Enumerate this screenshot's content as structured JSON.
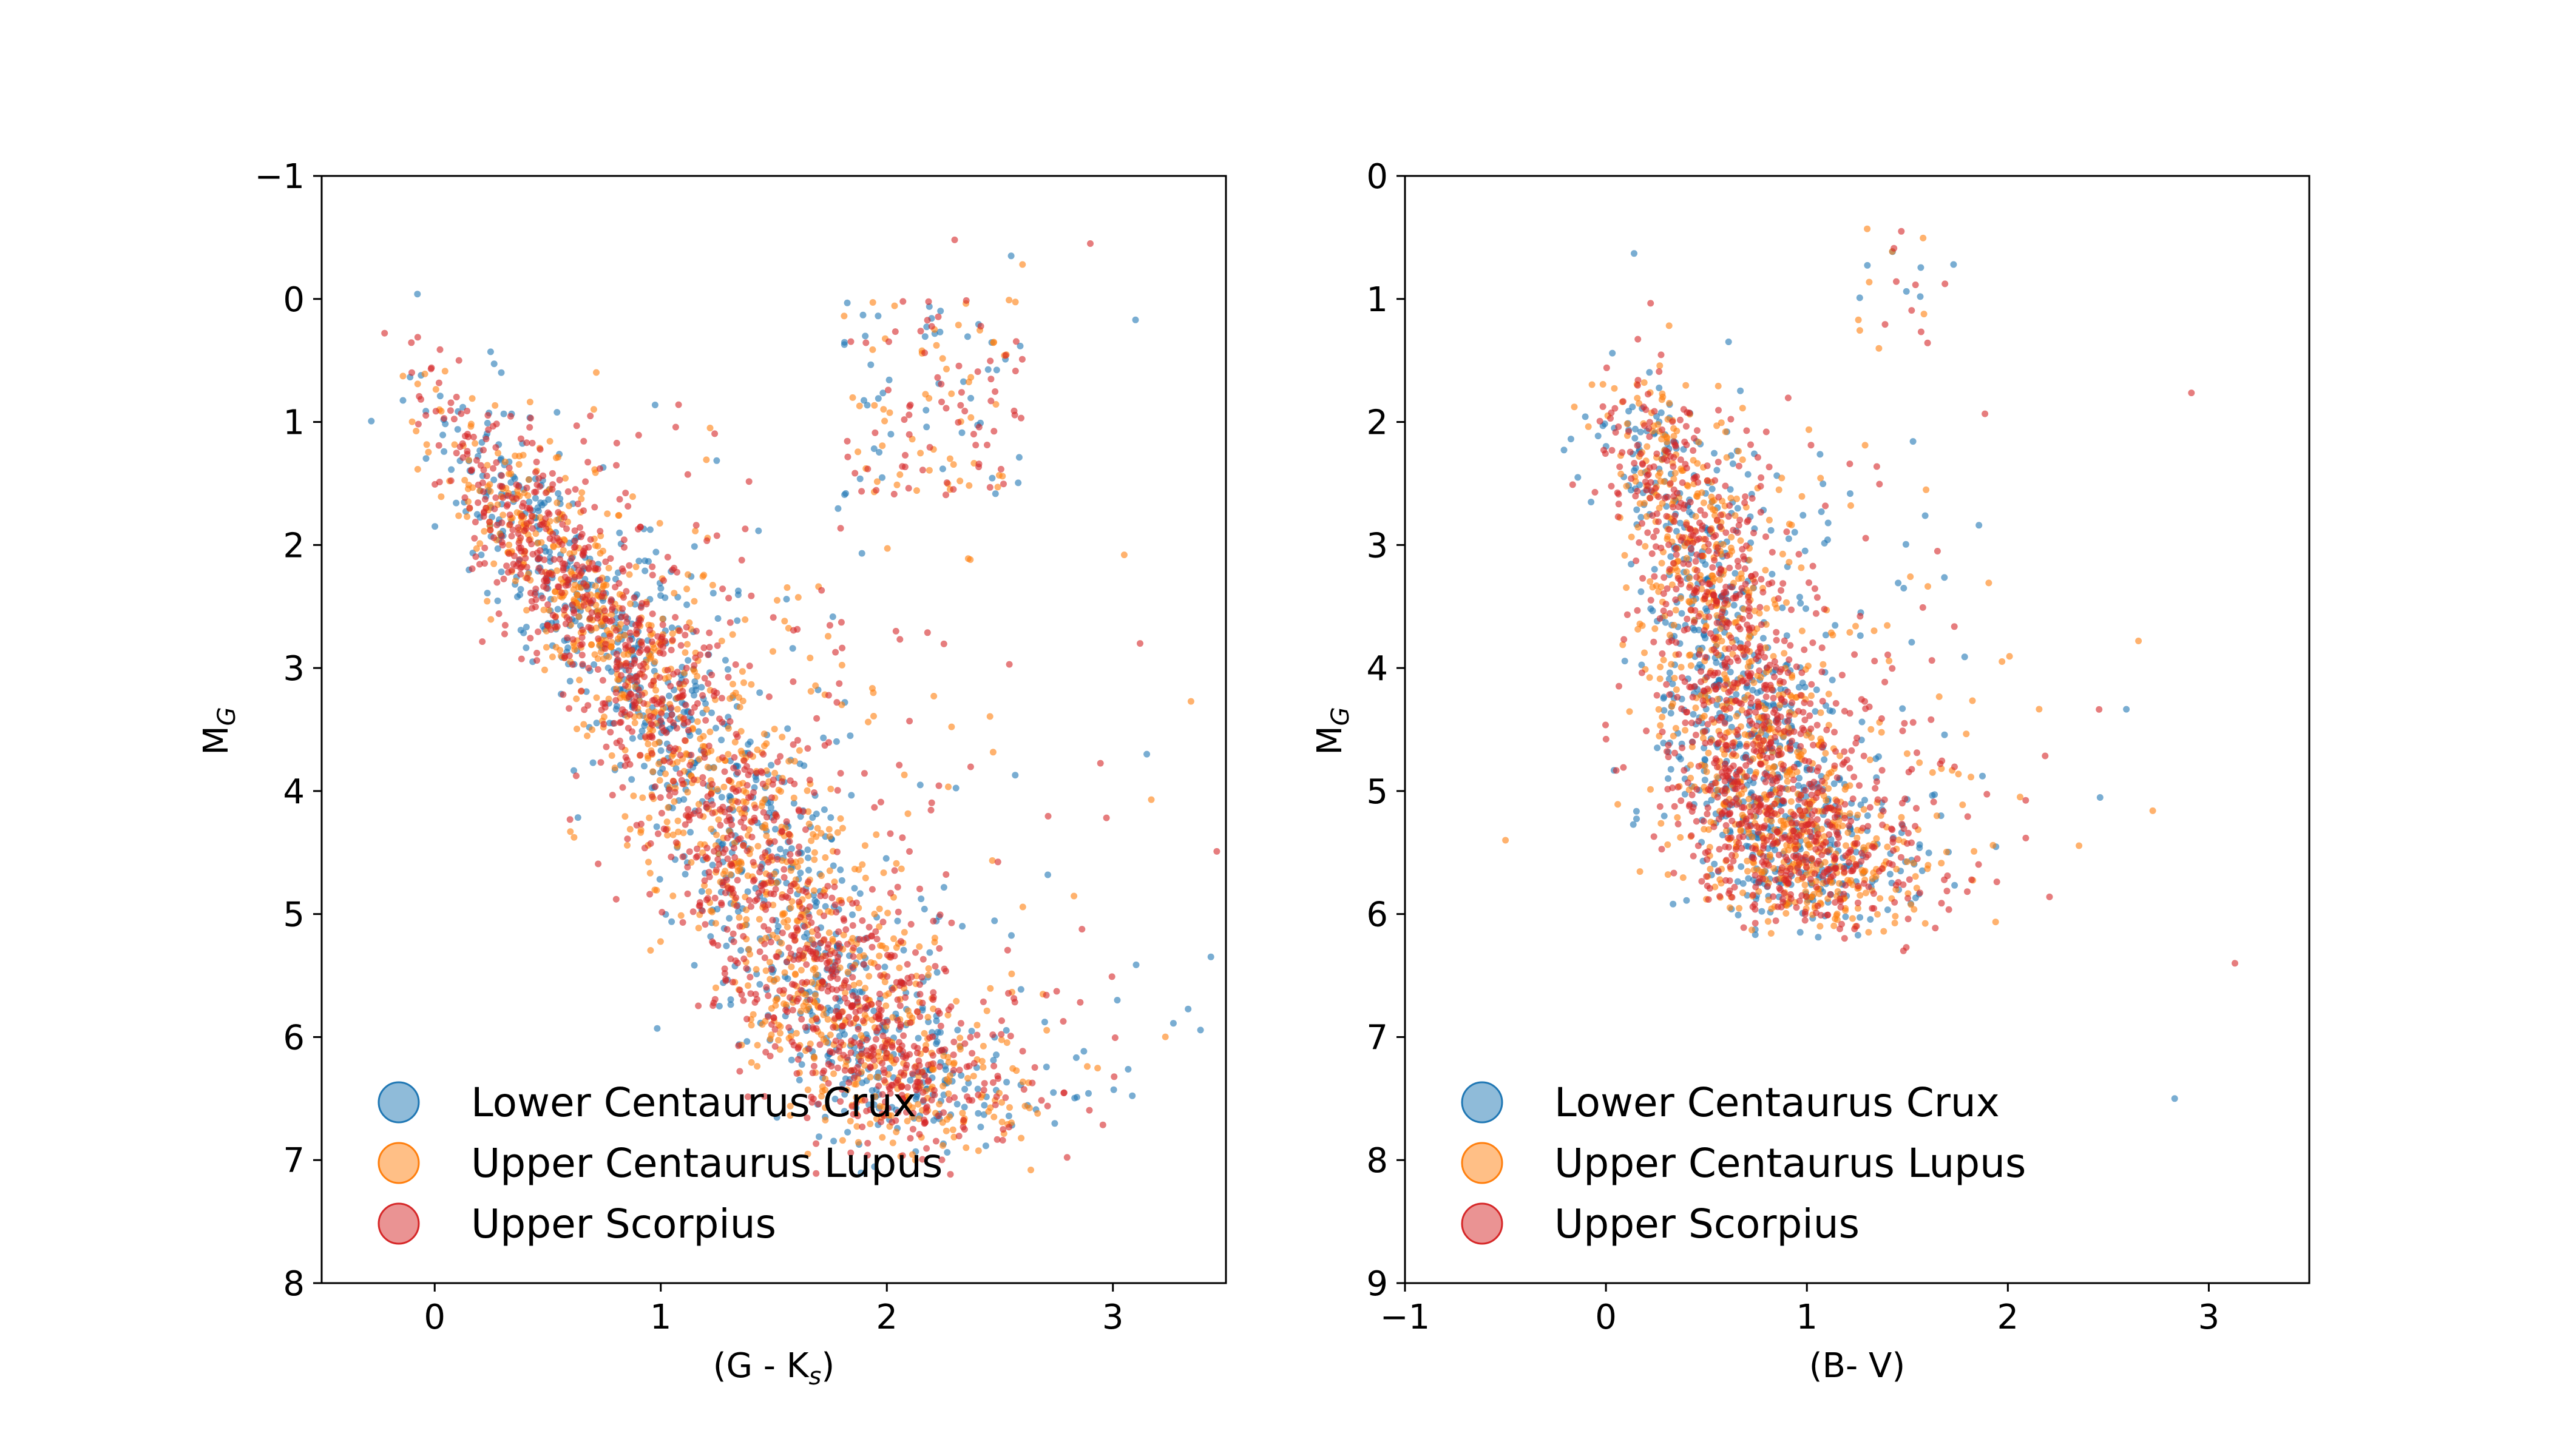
{
  "colors": {
    "lcc": "#1f77b4",
    "ucl": "#ff7f0e",
    "usco": "#d62728",
    "axes": "#000000",
    "background": "#ffffff"
  },
  "chart_data": [
    {
      "type": "scatter",
      "title": "",
      "xlabel": {
        "main": "(G - K",
        "sub": "s",
        "tail": ")"
      },
      "ylabel": {
        "main": "M",
        "sub": "G"
      },
      "xlim": [
        -0.5,
        3.5
      ],
      "ylim": [
        8,
        -1
      ],
      "y_inverted": true,
      "xticks": [
        0,
        1,
        2,
        3
      ],
      "yticks": [
        -1,
        0,
        1,
        2,
        3,
        4,
        5,
        6,
        7,
        8
      ],
      "xtick_labels": [
        "0",
        "1",
        "2",
        "3"
      ],
      "ytick_labels": [
        "−1",
        "0",
        "1",
        "2",
        "3",
        "4",
        "5",
        "6",
        "7",
        "8"
      ],
      "grid": false,
      "legend_position": "lower-left",
      "series": [
        {
          "name": "Lower Centaurus Crux",
          "color": "#1f77b4",
          "sequence": "main",
          "count": 900
        },
        {
          "name": "Upper Centaurus Lupus",
          "color": "#ff7f0e",
          "sequence": "main",
          "count": 1100
        },
        {
          "name": "Upper Scorpius",
          "color": "#d62728",
          "sequence": "main",
          "count": 1300
        }
      ],
      "sequence_ridge": {
        "x": [
          -0.3,
          0.2,
          0.6,
          1.0,
          1.4,
          1.8,
          2.2
        ],
        "y": [
          0.0,
          1.3,
          2.3,
          3.3,
          4.6,
          5.8,
          6.7
        ]
      },
      "giant_branch": {
        "x_range": [
          1.8,
          2.6
        ],
        "y_range": [
          0.0,
          1.6
        ]
      },
      "notable_points": [
        {
          "x": 2.55,
          "y": -0.35
        },
        {
          "x": 2.6,
          "y": -0.28
        },
        {
          "x": 2.9,
          "y": -0.45
        },
        {
          "x": 3.1,
          "y": 0.17
        },
        {
          "x": 3.05,
          "y": 2.08
        },
        {
          "x": 3.12,
          "y": 2.8
        },
        {
          "x": 3.15,
          "y": 3.7
        },
        {
          "x": 0.6,
          "y": 4.33
        },
        {
          "x": 2.3,
          "y": -0.48
        }
      ]
    },
    {
      "type": "scatter",
      "title": "",
      "xlabel": {
        "main": "(B- V)",
        "sub": "",
        "tail": ""
      },
      "ylabel": {
        "main": "M",
        "sub": "G"
      },
      "xlim": [
        -1,
        3.5
      ],
      "ylim": [
        9,
        0
      ],
      "y_inverted": true,
      "xticks": [
        -1,
        0,
        1,
        2,
        3
      ],
      "yticks": [
        0,
        1,
        2,
        3,
        4,
        5,
        6,
        7,
        8,
        9
      ],
      "xtick_labels": [
        "−1",
        "0",
        "1",
        "2",
        "3"
      ],
      "ytick_labels": [
        "0",
        "1",
        "2",
        "3",
        "4",
        "5",
        "6",
        "7",
        "8",
        "9"
      ],
      "grid": false,
      "legend_position": "lower-left",
      "series": [
        {
          "name": "Lower Centaurus Crux",
          "color": "#1f77b4",
          "sequence": "main",
          "count": 700
        },
        {
          "name": "Upper Centaurus Lupus",
          "color": "#ff7f0e",
          "sequence": "main",
          "count": 850
        },
        {
          "name": "Upper Scorpius",
          "color": "#d62728",
          "sequence": "main",
          "count": 1000
        }
      ],
      "sequence_ridge": {
        "x": [
          0.0,
          0.2,
          0.45,
          0.6,
          0.75,
          0.9,
          1.1
        ],
        "y": [
          1.2,
          2.0,
          3.0,
          4.0,
          4.8,
          5.4,
          5.9
        ]
      },
      "giant_branch": {
        "x_range": [
          1.25,
          1.75
        ],
        "y_range": [
          0.5,
          1.5
        ]
      },
      "notable_points": [
        {
          "x": 0.14,
          "y": 0.63
        },
        {
          "x": 1.3,
          "y": 0.43
        },
        {
          "x": 1.47,
          "y": 0.45
        },
        {
          "x": 1.73,
          "y": 0.72
        },
        {
          "x": 2.65,
          "y": 3.78
        },
        {
          "x": 3.13,
          "y": 6.4
        },
        {
          "x": 2.83,
          "y": 7.5
        },
        {
          "x": -0.5,
          "y": 5.4
        },
        {
          "x": 1.65,
          "y": 3.05
        }
      ]
    }
  ]
}
